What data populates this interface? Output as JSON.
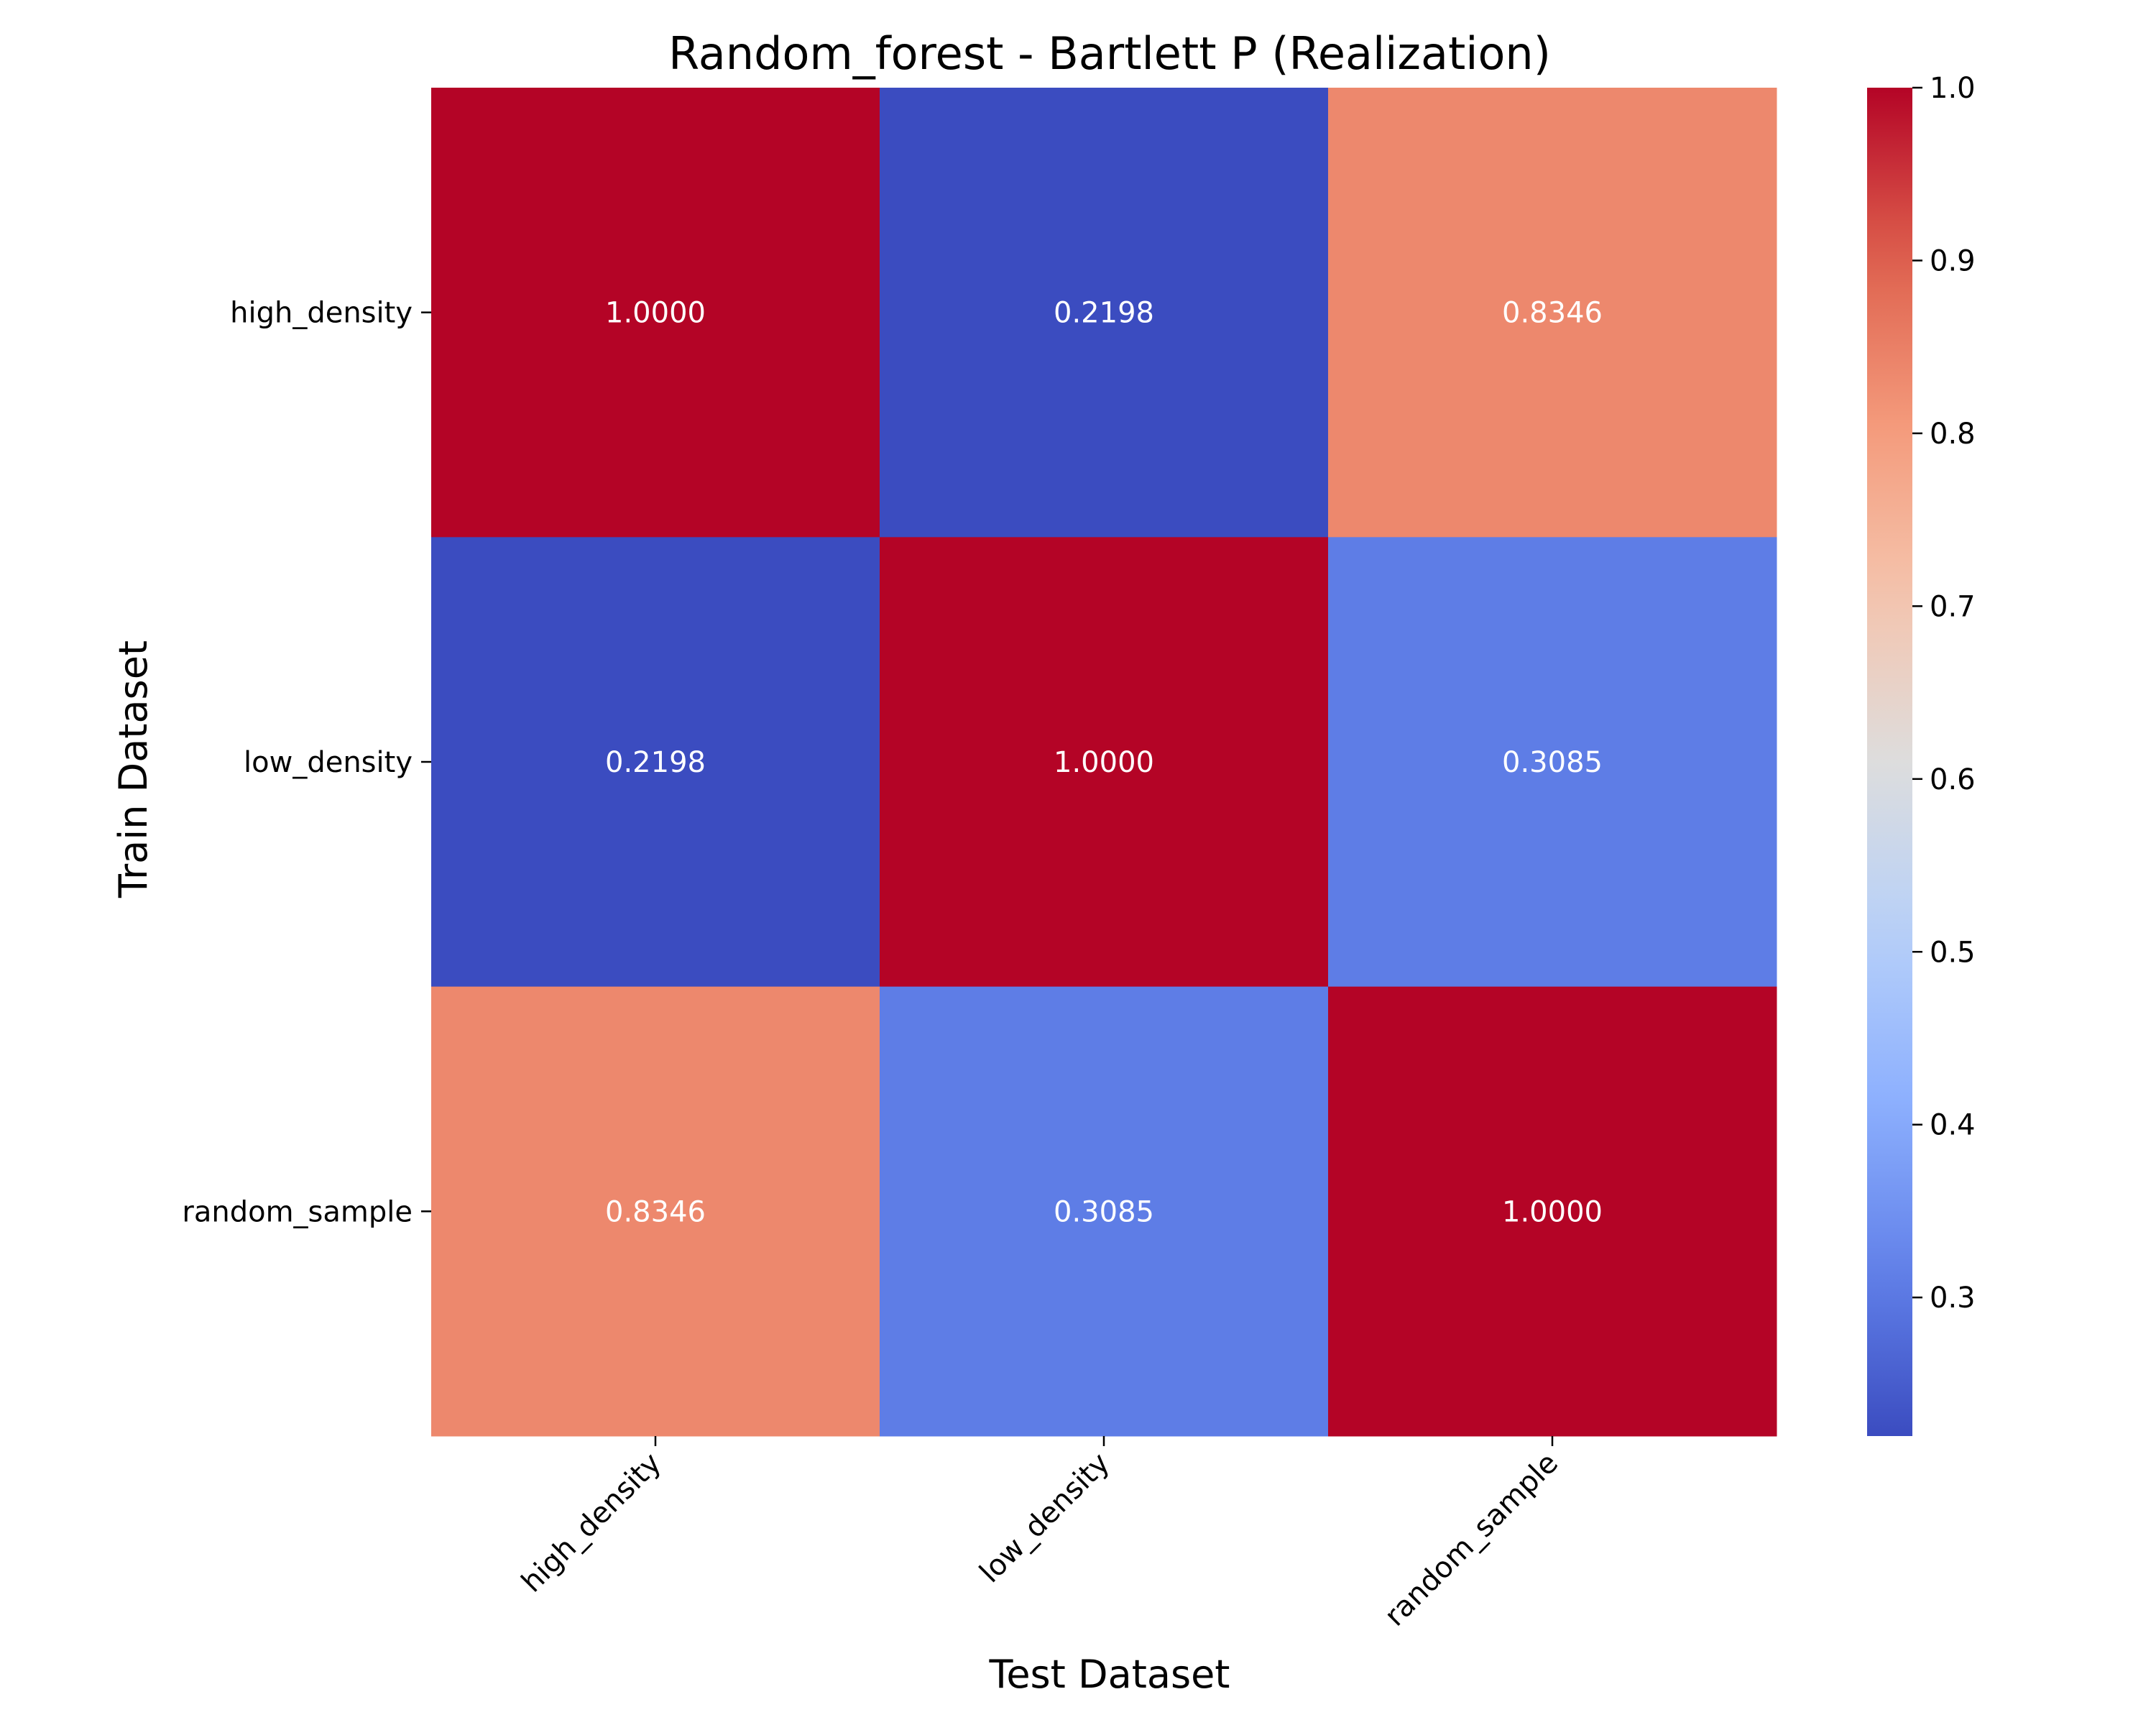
{
  "chart_data": {
    "type": "heatmap",
    "title": "Random_forest - Bartlett P (Realization)",
    "xlabel": "Test Dataset",
    "ylabel": "Train Dataset",
    "x_categories": [
      "high_density",
      "low_density",
      "random_sample"
    ],
    "y_categories": [
      "high_density",
      "low_density",
      "random_sample"
    ],
    "values": [
      [
        1.0,
        0.2198,
        0.8346
      ],
      [
        0.2198,
        1.0,
        0.3085
      ],
      [
        0.8346,
        0.3085,
        1.0
      ]
    ],
    "value_labels": [
      [
        "1.0000",
        "0.2198",
        "0.8346"
      ],
      [
        "0.2198",
        "1.0000",
        "0.3085"
      ],
      [
        "0.8346",
        "0.3085",
        "1.0000"
      ]
    ],
    "colormap": "coolwarm",
    "colorbar": {
      "vmin": 0.2198,
      "vmax": 1.0,
      "ticks": [
        0.3,
        0.4,
        0.5,
        0.6,
        0.7,
        0.8,
        0.9,
        1.0
      ],
      "tick_labels": [
        "0.3",
        "0.4",
        "0.5",
        "0.6",
        "0.7",
        "0.8",
        "0.9",
        "1.0"
      ]
    },
    "x_tick_rotation": 45,
    "grid": false,
    "legend": "colorbar-right"
  }
}
